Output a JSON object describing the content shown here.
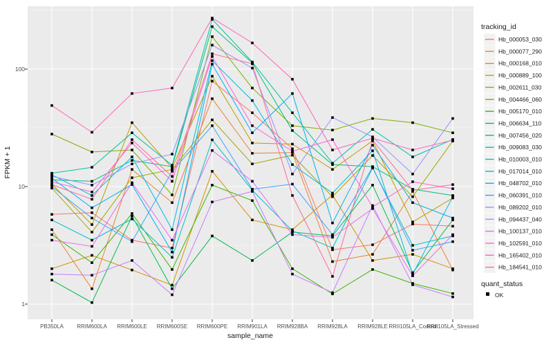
{
  "chart_data": {
    "type": "line",
    "title": "",
    "xlabel": "sample_name",
    "ylabel": "FPKM + 1",
    "y_scale": "log10",
    "y_ticks": [
      "1",
      "10",
      "100"
    ],
    "ylim": [
      1,
      340
    ],
    "grid": "major-and-minor",
    "legend_position": "right",
    "legend_title": "tracking_id",
    "marker_legend": {
      "title": "quant_status",
      "items": [
        {
          "label": "OK",
          "marker": "black-square"
        }
      ]
    },
    "panel_bg": "#EBEBEB",
    "grid_color": "#FFFFFF",
    "marker_color": "#000000",
    "tick_label_color": "#4D4D4D",
    "axis_title_color": "#1a1a1a",
    "legend_key_bg": "#F2F2F2",
    "categories": [
      "PB350LA",
      "RRIM600LA",
      "RRIM600LE",
      "RRIM600SE",
      "RRIM600PE",
      "RRIM901LA",
      "RRIM928BA",
      "RRIM928LA",
      "RRIM928LE",
      "RRII105LA_Control",
      "RRII105LA_Stressed"
    ],
    "series": [
      {
        "name": "Hb_000053_030",
        "color": "#F8766D",
        "values": [
          5.8,
          6.0,
          3.5,
          3.0,
          79,
          42.5,
          21,
          2.9,
          3.2,
          4.8,
          4.6
        ]
      },
      {
        "name": "Hb_000077_290",
        "color": "#EA8331",
        "values": [
          4.3,
          1.35,
          14.0,
          7.3,
          56,
          19.2,
          19.5,
          2.3,
          2.65,
          9.1,
          1.95
        ]
      },
      {
        "name": "Hb_000168_010",
        "color": "#D89000",
        "values": [
          2.0,
          2.6,
          1.95,
          1.45,
          13.5,
          5.2,
          4.3,
          8.5,
          2.35,
          2.65,
          2.0
        ]
      },
      {
        "name": "Hb_000889_100",
        "color": "#C09B00",
        "values": [
          10.5,
          4.75,
          35,
          14.4,
          87,
          23.5,
          23,
          14.0,
          24.5,
          5.0,
          8.0
        ]
      },
      {
        "name": "Hb_002611_030",
        "color": "#A3A500",
        "values": [
          9.7,
          4.1,
          11.9,
          14.0,
          37,
          15.6,
          18.5,
          8.2,
          18.4,
          8.2,
          24.4
        ]
      },
      {
        "name": "Hb_004466_060",
        "color": "#7CAE00",
        "values": [
          28,
          19.7,
          20.5,
          8.5,
          189,
          69,
          33,
          30.3,
          38,
          35,
          28.7
        ]
      },
      {
        "name": "Hb_005170_010",
        "color": "#39B600",
        "values": [
          3.9,
          2.25,
          5.9,
          1.97,
          10.3,
          7.6,
          2.0,
          1.22,
          1.97,
          1.5,
          1.23
        ]
      },
      {
        "name": "Hb_006634_110",
        "color": "#00BB4E",
        "values": [
          1.6,
          1.03,
          5.6,
          1.35,
          3.8,
          2.35,
          4.1,
          3.8,
          10.3,
          1.85,
          5.2
        ]
      },
      {
        "name": "Hb_007456_020",
        "color": "#00BF7D",
        "values": [
          11.4,
          11.1,
          16.7,
          14.8,
          230,
          113,
          30,
          15.4,
          14.8,
          9.5,
          8.4
        ]
      },
      {
        "name": "Hb_009083_030",
        "color": "#00C1A3",
        "values": [
          13.0,
          14.6,
          28.7,
          15.2,
          265,
          115,
          42.5,
          15.8,
          30.7,
          17.9,
          25.2
        ]
      },
      {
        "name": "Hb_010003_010",
        "color": "#00BFC4",
        "values": [
          5.2,
          3.5,
          5.3,
          2.5,
          25,
          9.3,
          4.2,
          3.0,
          14.4,
          3.16,
          3.8
        ]
      },
      {
        "name": "Hb_017014_010",
        "color": "#00BAE0",
        "values": [
          12.6,
          8.4,
          17.9,
          4.3,
          118,
          54,
          15.4,
          8.8,
          20.2,
          1.79,
          8.2
        ]
      },
      {
        "name": "Hb_048702_010",
        "color": "#00B0F6",
        "values": [
          11.8,
          6.6,
          10.4,
          2.77,
          110,
          28.7,
          62,
          4.9,
          22.5,
          7.3,
          5.4
        ]
      },
      {
        "name": "Hb_060391_010",
        "color": "#35A2FF",
        "values": [
          10.0,
          5.4,
          3.4,
          13.5,
          33,
          9.5,
          10.5,
          3.9,
          14.6,
          2.87,
          3.4
        ]
      },
      {
        "name": "Hb_089202_010",
        "color": "#9590FF",
        "values": [
          12.2,
          10.3,
          15.6,
          18.9,
          160,
          102,
          12.8,
          38.7,
          26.5,
          12.8,
          38
        ]
      },
      {
        "name": "Hb_094437_040",
        "color": "#C77CFF",
        "values": [
          1.8,
          1.76,
          2.35,
          1.2,
          7.4,
          9.1,
          1.8,
          1.25,
          6.9,
          1.46,
          1.15
        ]
      },
      {
        "name": "Hb_100137_010",
        "color": "#E76BF3",
        "values": [
          3.5,
          3.1,
          10.8,
          3.5,
          20.3,
          11.1,
          3.9,
          3.7,
          6.5,
          1.74,
          3.9
        ]
      },
      {
        "name": "Hb_102591_010",
        "color": "#FA62DB",
        "values": [
          11.0,
          9.0,
          23.5,
          11.1,
          128,
          33,
          20,
          25.1,
          6.7,
          11.0,
          9.6
        ]
      },
      {
        "name": "Hb_165402_010",
        "color": "#FF62BC",
        "values": [
          49,
          29,
          62,
          69,
          272,
          167,
          82,
          20.5,
          25.8,
          20.5,
          24.8
        ]
      },
      {
        "name": "Hb_184541_010",
        "color": "#FF6A98",
        "values": [
          10.4,
          7.8,
          25.1,
          12.2,
          135,
          111,
          8.4,
          1.72,
          25.0,
          9.3,
          10.4
        ]
      }
    ]
  }
}
